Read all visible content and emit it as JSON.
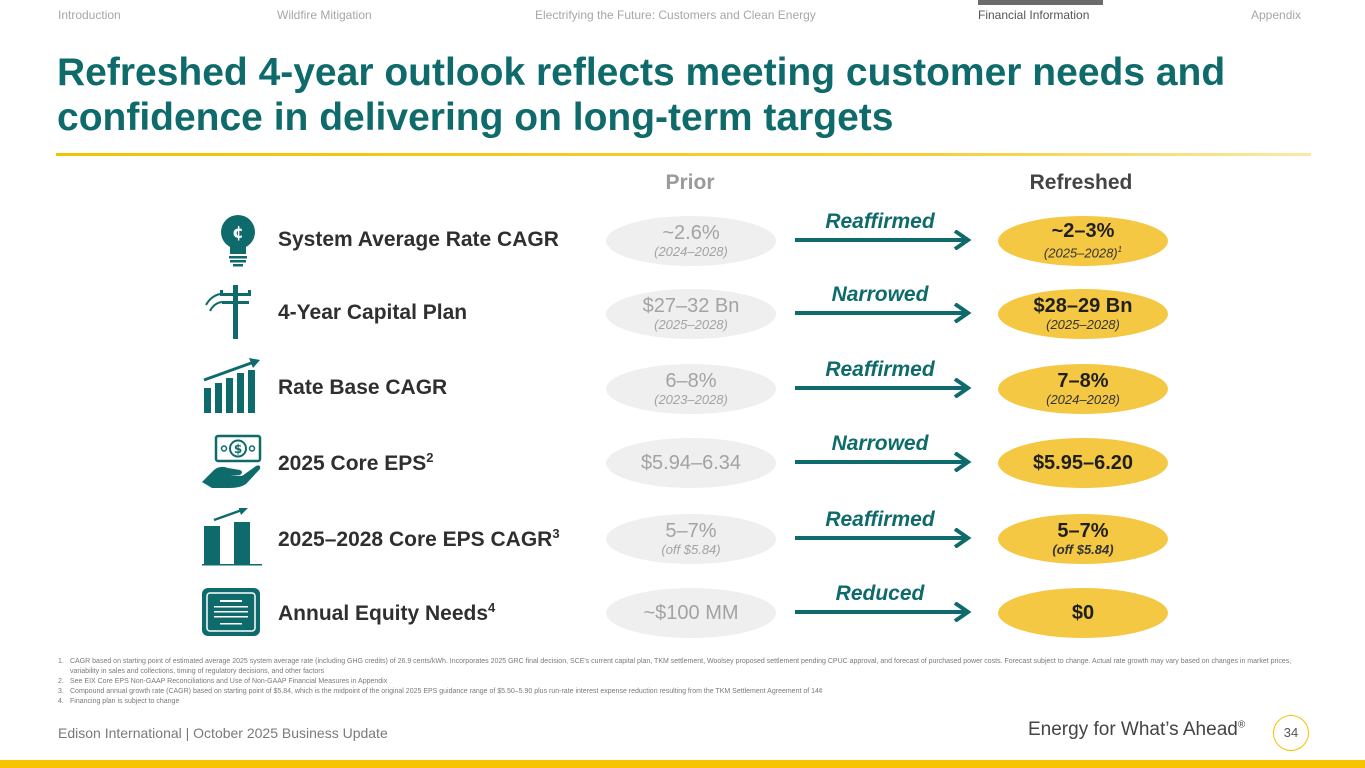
{
  "nav": {
    "items": [
      "Introduction",
      "Wildfire Mitigation",
      "Electrifying the Future: Customers and Clean Energy",
      "Financial Information",
      "Appendix"
    ],
    "active": "Financial Information"
  },
  "title": "Refreshed 4-year outlook reflects meeting customer needs and confidence in delivering on long-term targets",
  "columns": {
    "prior": "Prior",
    "refreshed": "Refreshed"
  },
  "rows": [
    {
      "icon": "lightbulb-cent-icon",
      "label": "System Average Rate CAGR",
      "sup": "",
      "prior_main": "~2.6%",
      "prior_sub": "(2024–2028)",
      "change": "Reaffirmed",
      "new_main": "~2–3%",
      "new_sub": "(2025–2028)",
      "new_sup": "1"
    },
    {
      "icon": "utility-pole-icon",
      "label": "4-Year Capital Plan",
      "sup": "",
      "prior_main": "$27–32 Bn",
      "prior_sub": "(2025–2028)",
      "change": "Narrowed",
      "new_main": "$28–29 Bn",
      "new_sub": "(2025–2028)",
      "new_sup": ""
    },
    {
      "icon": "bar-chart-growth-icon",
      "label": "Rate Base CAGR",
      "sup": "",
      "prior_main": "6–8%",
      "prior_sub": "(2023–2028)",
      "change": "Reaffirmed",
      "new_main": "7–8%",
      "new_sub": "(2024–2028)",
      "new_sup": ""
    },
    {
      "icon": "hand-money-icon",
      "label": "2025 Core EPS",
      "sup": "2",
      "prior_main": "$5.94–6.34",
      "prior_sub": "",
      "change": "Narrowed",
      "new_main": "$5.95–6.20",
      "new_sub": "",
      "new_sup": ""
    },
    {
      "icon": "bars-arrow-icon",
      "label": "2025–2028 Core EPS CAGR",
      "sup": "3",
      "prior_main": "5–7%",
      "prior_sub": "(off $5.84)",
      "change": "Reaffirmed",
      "new_main": "5–7%",
      "new_sub": "(off $5.84)",
      "new_sup": ""
    },
    {
      "icon": "certificate-icon",
      "label": "Annual Equity Needs",
      "sup": "4",
      "prior_main": "~$100 MM",
      "prior_sub": "",
      "change": "Reduced",
      "new_main": "$0",
      "new_sub": "",
      "new_sup": ""
    }
  ],
  "footnotes": [
    {
      "num": "1.",
      "text": "CAGR based on starting point of estimated average 2025 system average rate (including GHG credits) of 26.9 cents/kWh. Incorporates 2025 GRC final decision, SCE's current capital plan, TKM settlement, Woolsey proposed settlement pending CPUC approval, and forecast of purchased power costs. Forecast subject to change. Actual rate growth may vary based on changes in market prices, variability in sales and collections, timing of regulatory decisions, and other factors"
    },
    {
      "num": "2.",
      "text": "See EIX Core EPS Non-GAAP Reconciliations and Use of Non-GAAP Financial Measures in Appendix"
    },
    {
      "num": "3.",
      "text": "Compound annual growth rate (CAGR) based on starting point of $5.84, which is the midpoint of the original 2025 EPS guidance range of $5.50–5.90 plus run-rate interest expense reduction resulting from the TKM Settlement Agreement of 14¢"
    },
    {
      "num": "4.",
      "text": "Financing plan is subject to change"
    }
  ],
  "footer": {
    "left": "Edison International |  October 2025 Business Update",
    "tagline": "Energy for What’s Ahead",
    "tagline_mark": "®",
    "page": "34"
  },
  "colors": {
    "teal": "#0f6b6b",
    "gold": "#f5c843",
    "grey_pill": "#efefef"
  }
}
